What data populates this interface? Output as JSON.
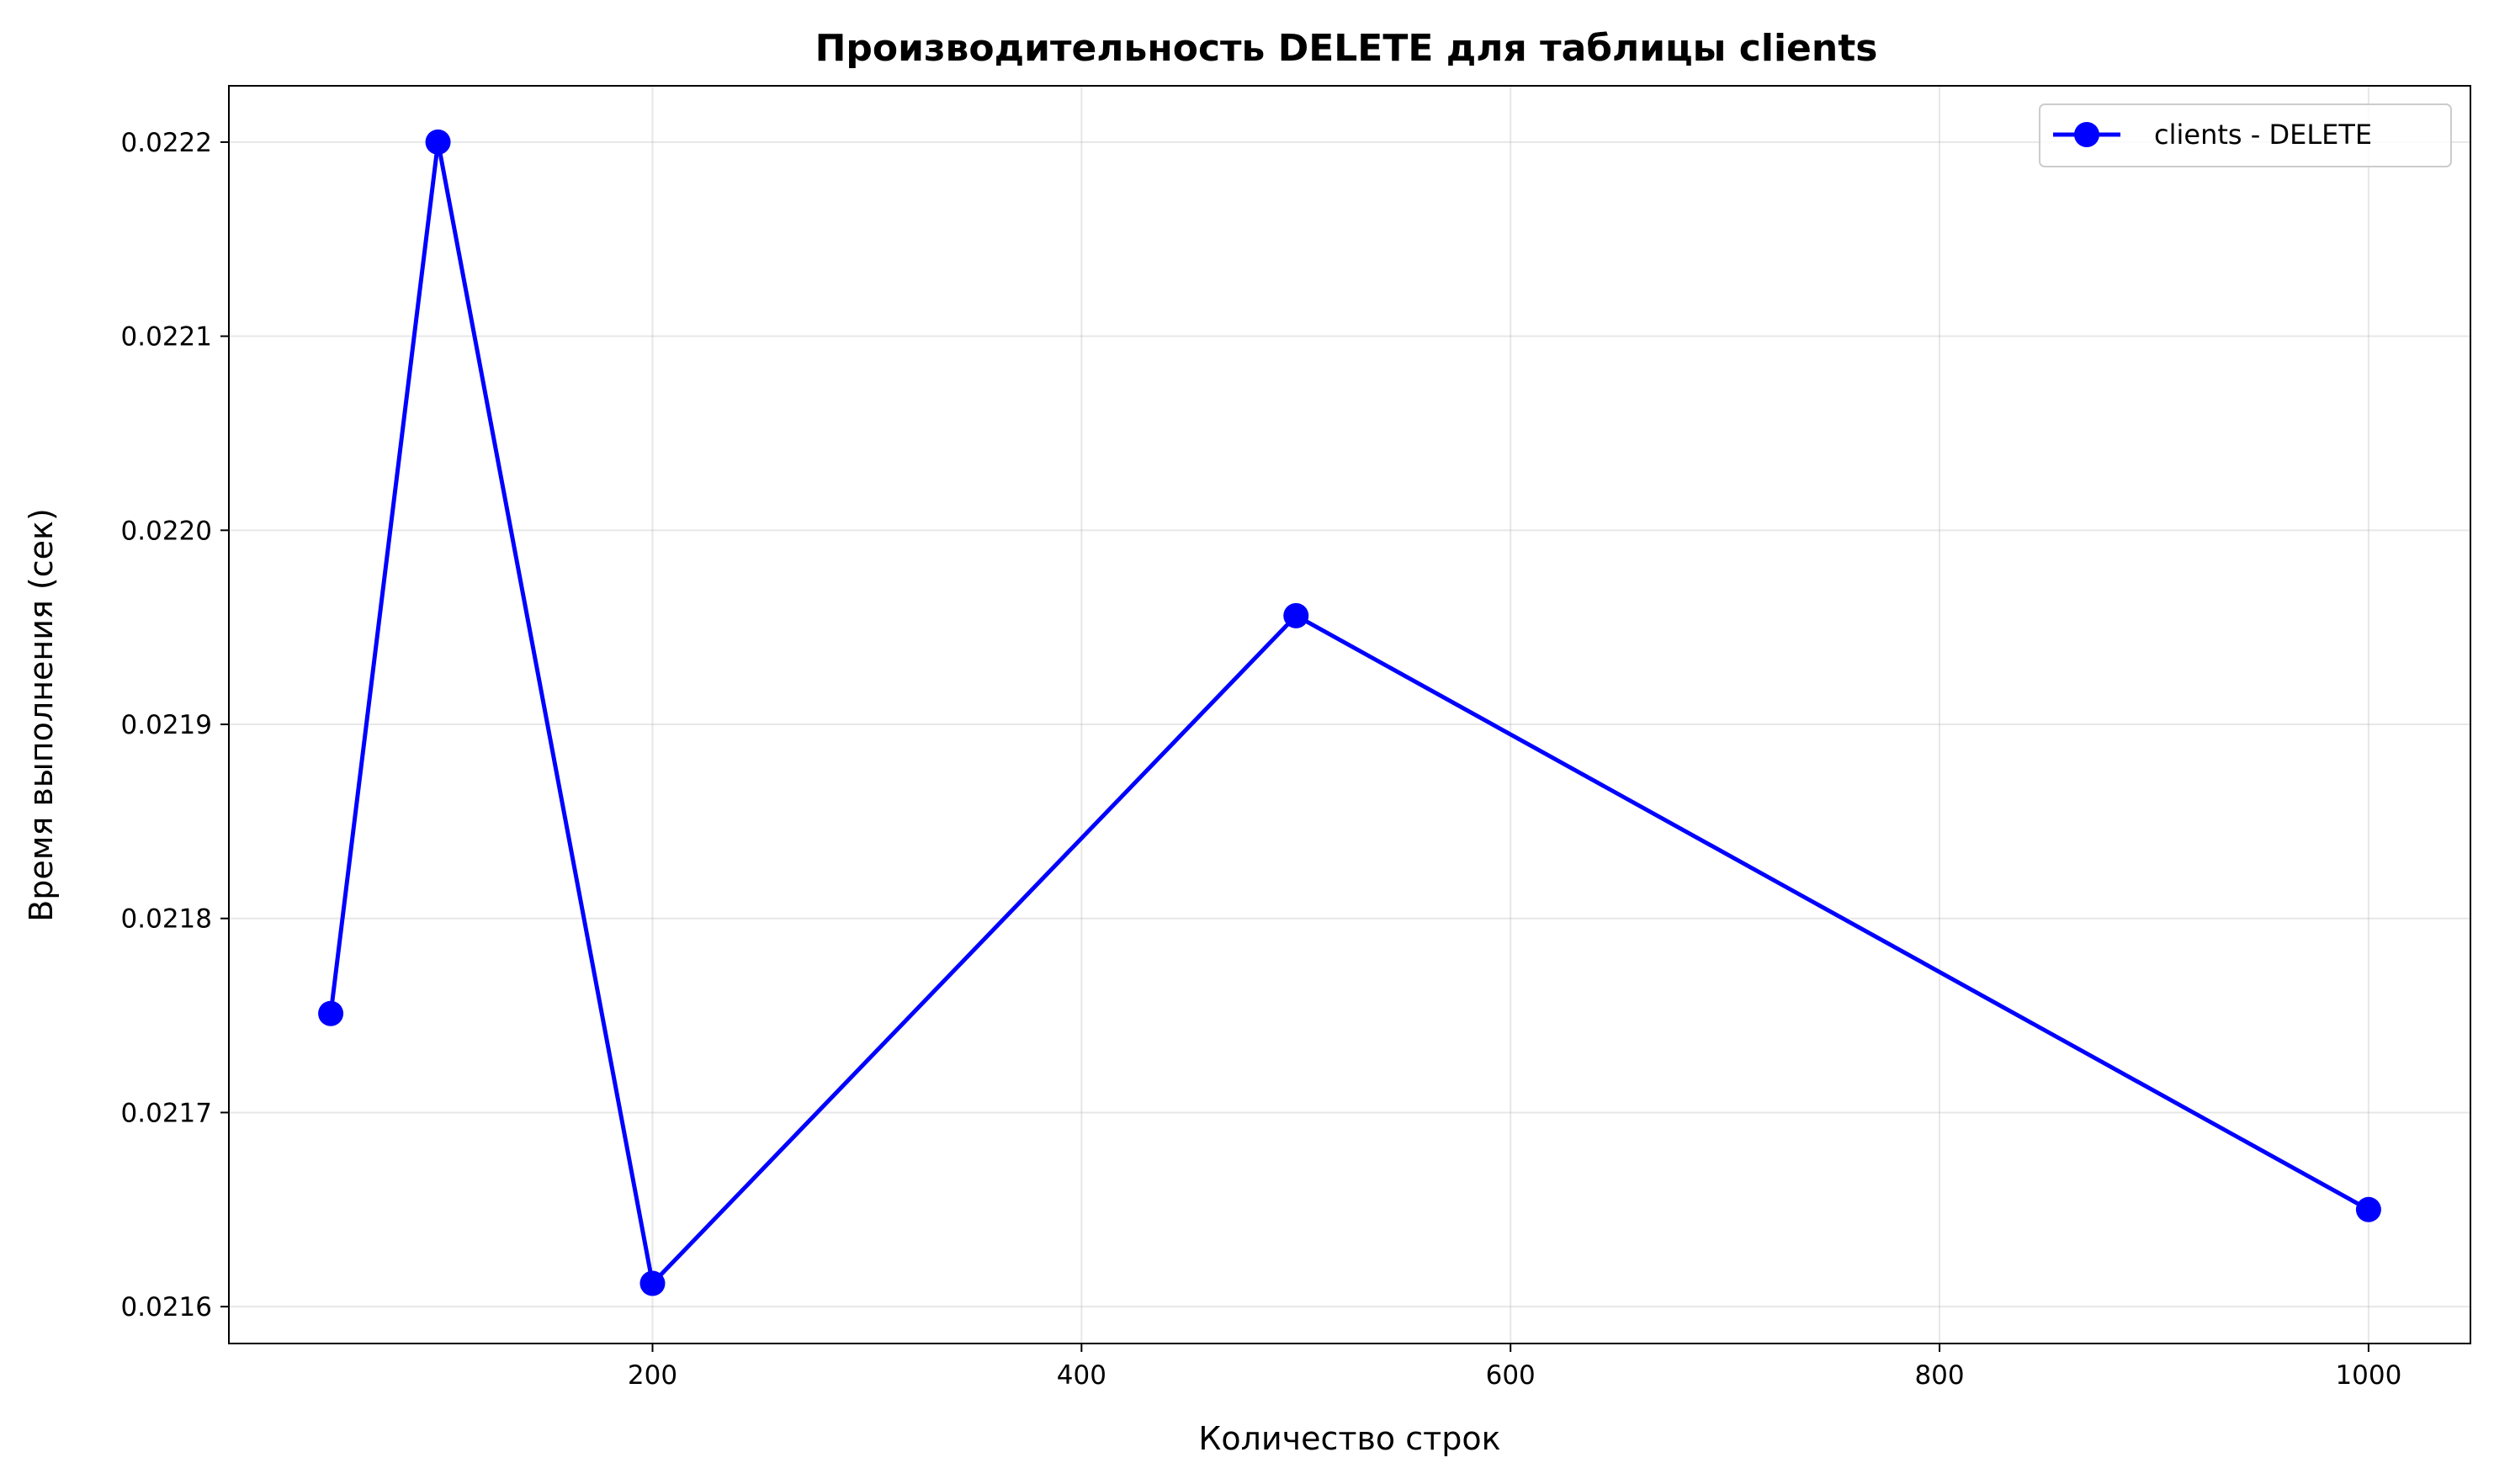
{
  "chart_data": {
    "type": "line",
    "title": "Производительность DELETE для таблицы clients",
    "xlabel": "Количество строк",
    "ylabel": "Время выполнения (сек)",
    "xlim": [
      2.5,
      1047.5
    ],
    "ylim": [
      0.021581,
      0.022229
    ],
    "xticks": [
      200,
      400,
      600,
      800,
      1000
    ],
    "xtick_labels": [
      "200",
      "400",
      "600",
      "800",
      "1000"
    ],
    "yticks": [
      0.0216,
      0.0217,
      0.0218,
      0.0219,
      0.022,
      0.0221,
      0.0222
    ],
    "ytick_labels": [
      "0.0216",
      "0.0217",
      "0.0218",
      "0.0219",
      "0.0220",
      "0.0221",
      "0.0222"
    ],
    "grid": true,
    "legend_position": "top-right",
    "series": [
      {
        "name": "clients - DELETE",
        "color": "#0000ff",
        "marker": "circle",
        "x": [
          50,
          100,
          200,
          500,
          1000
        ],
        "y": [
          0.021751,
          0.0222,
          0.021612,
          0.021956,
          0.02165
        ]
      }
    ]
  }
}
